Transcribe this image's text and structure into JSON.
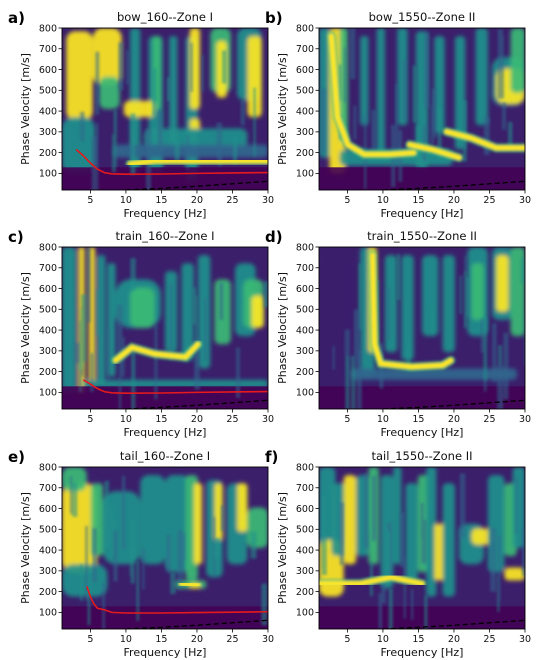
{
  "figure": {
    "colors": {
      "dark": "#440154",
      "purple": "#3b1f6b",
      "blue": "#31678e",
      "teal": "#21918c",
      "green": "#3bbb75",
      "yellow": "#fde725",
      "red_curve": "#e41a1c",
      "dashed": "#000000"
    }
  },
  "chart_data": [
    {
      "label": "a)",
      "title": "bow_160--Zone I",
      "type": "heatmap",
      "xlabel": "Frequency [Hz]",
      "ylabel": "Phase Velocity [m/s]",
      "xlim": [
        1,
        30
      ],
      "ylim": [
        20,
        800
      ],
      "xticks": [
        5,
        10,
        15,
        20,
        25,
        30
      ],
      "yticks": [
        100,
        200,
        300,
        400,
        500,
        600,
        700,
        800
      ],
      "red_curve": {
        "x": [
          3,
          4,
          5,
          6,
          7,
          8,
          10,
          15,
          20,
          25,
          30
        ],
        "y": [
          215,
          185,
          150,
          120,
          103,
          98,
          96,
          97,
          100,
          102,
          104
        ]
      },
      "dashed_line": {
        "x": [
          10,
          15,
          20,
          25,
          30
        ],
        "y": [
          20,
          28,
          38,
          50,
          62
        ]
      }
    },
    {
      "label": "b)",
      "title": "bow_1550--Zone II",
      "type": "heatmap",
      "xlabel": "Frequency [Hz]",
      "ylabel": "Phase Velocity [m/s]",
      "xlim": [
        1,
        30
      ],
      "ylim": [
        20,
        800
      ],
      "xticks": [
        5,
        10,
        15,
        20,
        25,
        30
      ],
      "yticks": [
        100,
        200,
        300,
        400,
        500,
        600,
        700,
        800
      ],
      "dashed_line": {
        "x": [
          10,
          15,
          20,
          25,
          30
        ],
        "y": [
          20,
          28,
          38,
          50,
          62
        ]
      }
    },
    {
      "label": "c)",
      "title": "train_160--Zone I",
      "type": "heatmap",
      "xlabel": "Frequency [Hz]",
      "ylabel": "Phase Velocity [m/s]",
      "xlim": [
        1,
        30
      ],
      "ylim": [
        20,
        800
      ],
      "xticks": [
        5,
        10,
        15,
        20,
        25,
        30
      ],
      "yticks": [
        100,
        200,
        300,
        400,
        500,
        600,
        700,
        800
      ],
      "red_curve": {
        "x": [
          4,
          5,
          6,
          7,
          8,
          10,
          15,
          20,
          25,
          30
        ],
        "y": [
          160,
          140,
          118,
          103,
          98,
          96,
          97,
          100,
          102,
          104
        ]
      },
      "dashed_line": {
        "x": [
          10,
          15,
          20,
          25,
          30
        ],
        "y": [
          20,
          28,
          38,
          50,
          62
        ]
      }
    },
    {
      "label": "d)",
      "title": "train_1550--Zone II",
      "type": "heatmap",
      "xlabel": "Frequency [Hz]",
      "ylabel": "Phase Velocity [m/s]",
      "xlim": [
        1,
        30
      ],
      "ylim": [
        20,
        800
      ],
      "xticks": [
        5,
        10,
        15,
        20,
        25,
        30
      ],
      "yticks": [
        100,
        200,
        300,
        400,
        500,
        600,
        700,
        800
      ],
      "dashed_line": {
        "x": [
          10,
          15,
          20,
          25,
          30
        ],
        "y": [
          20,
          28,
          38,
          50,
          62
        ]
      }
    },
    {
      "label": "e)",
      "title": "tail_160--Zone I",
      "type": "heatmap",
      "xlabel": "Frequency [Hz]",
      "ylabel": "Phase Velocity [m/s]",
      "xlim": [
        1,
        30
      ],
      "ylim": [
        20,
        800
      ],
      "xticks": [
        5,
        10,
        15,
        20,
        25,
        30
      ],
      "yticks": [
        100,
        200,
        300,
        400,
        500,
        600,
        700,
        800
      ],
      "red_curve": {
        "x": [
          4.5,
          5,
          5.5,
          6,
          7,
          8,
          10,
          15,
          20,
          25,
          30
        ],
        "y": [
          225,
          175,
          140,
          120,
          112,
          100,
          97,
          97,
          99,
          101,
          103
        ]
      },
      "dashed_line": {
        "x": [
          10,
          15,
          20,
          25,
          30
        ],
        "y": [
          20,
          28,
          38,
          50,
          62
        ]
      }
    },
    {
      "label": "f)",
      "title": "tail_1550--Zone II",
      "type": "heatmap",
      "xlabel": "Frequency [Hz]",
      "ylabel": "Phase Velocity [m/s]",
      "xlim": [
        1,
        30
      ],
      "ylim": [
        20,
        800
      ],
      "xticks": [
        5,
        10,
        15,
        20,
        25,
        30
      ],
      "yticks": [
        100,
        200,
        300,
        400,
        500,
        600,
        700,
        800
      ],
      "dashed_line": {
        "x": [
          10,
          15,
          20,
          25,
          30
        ],
        "y": [
          20,
          28,
          38,
          50,
          62
        ]
      }
    }
  ]
}
